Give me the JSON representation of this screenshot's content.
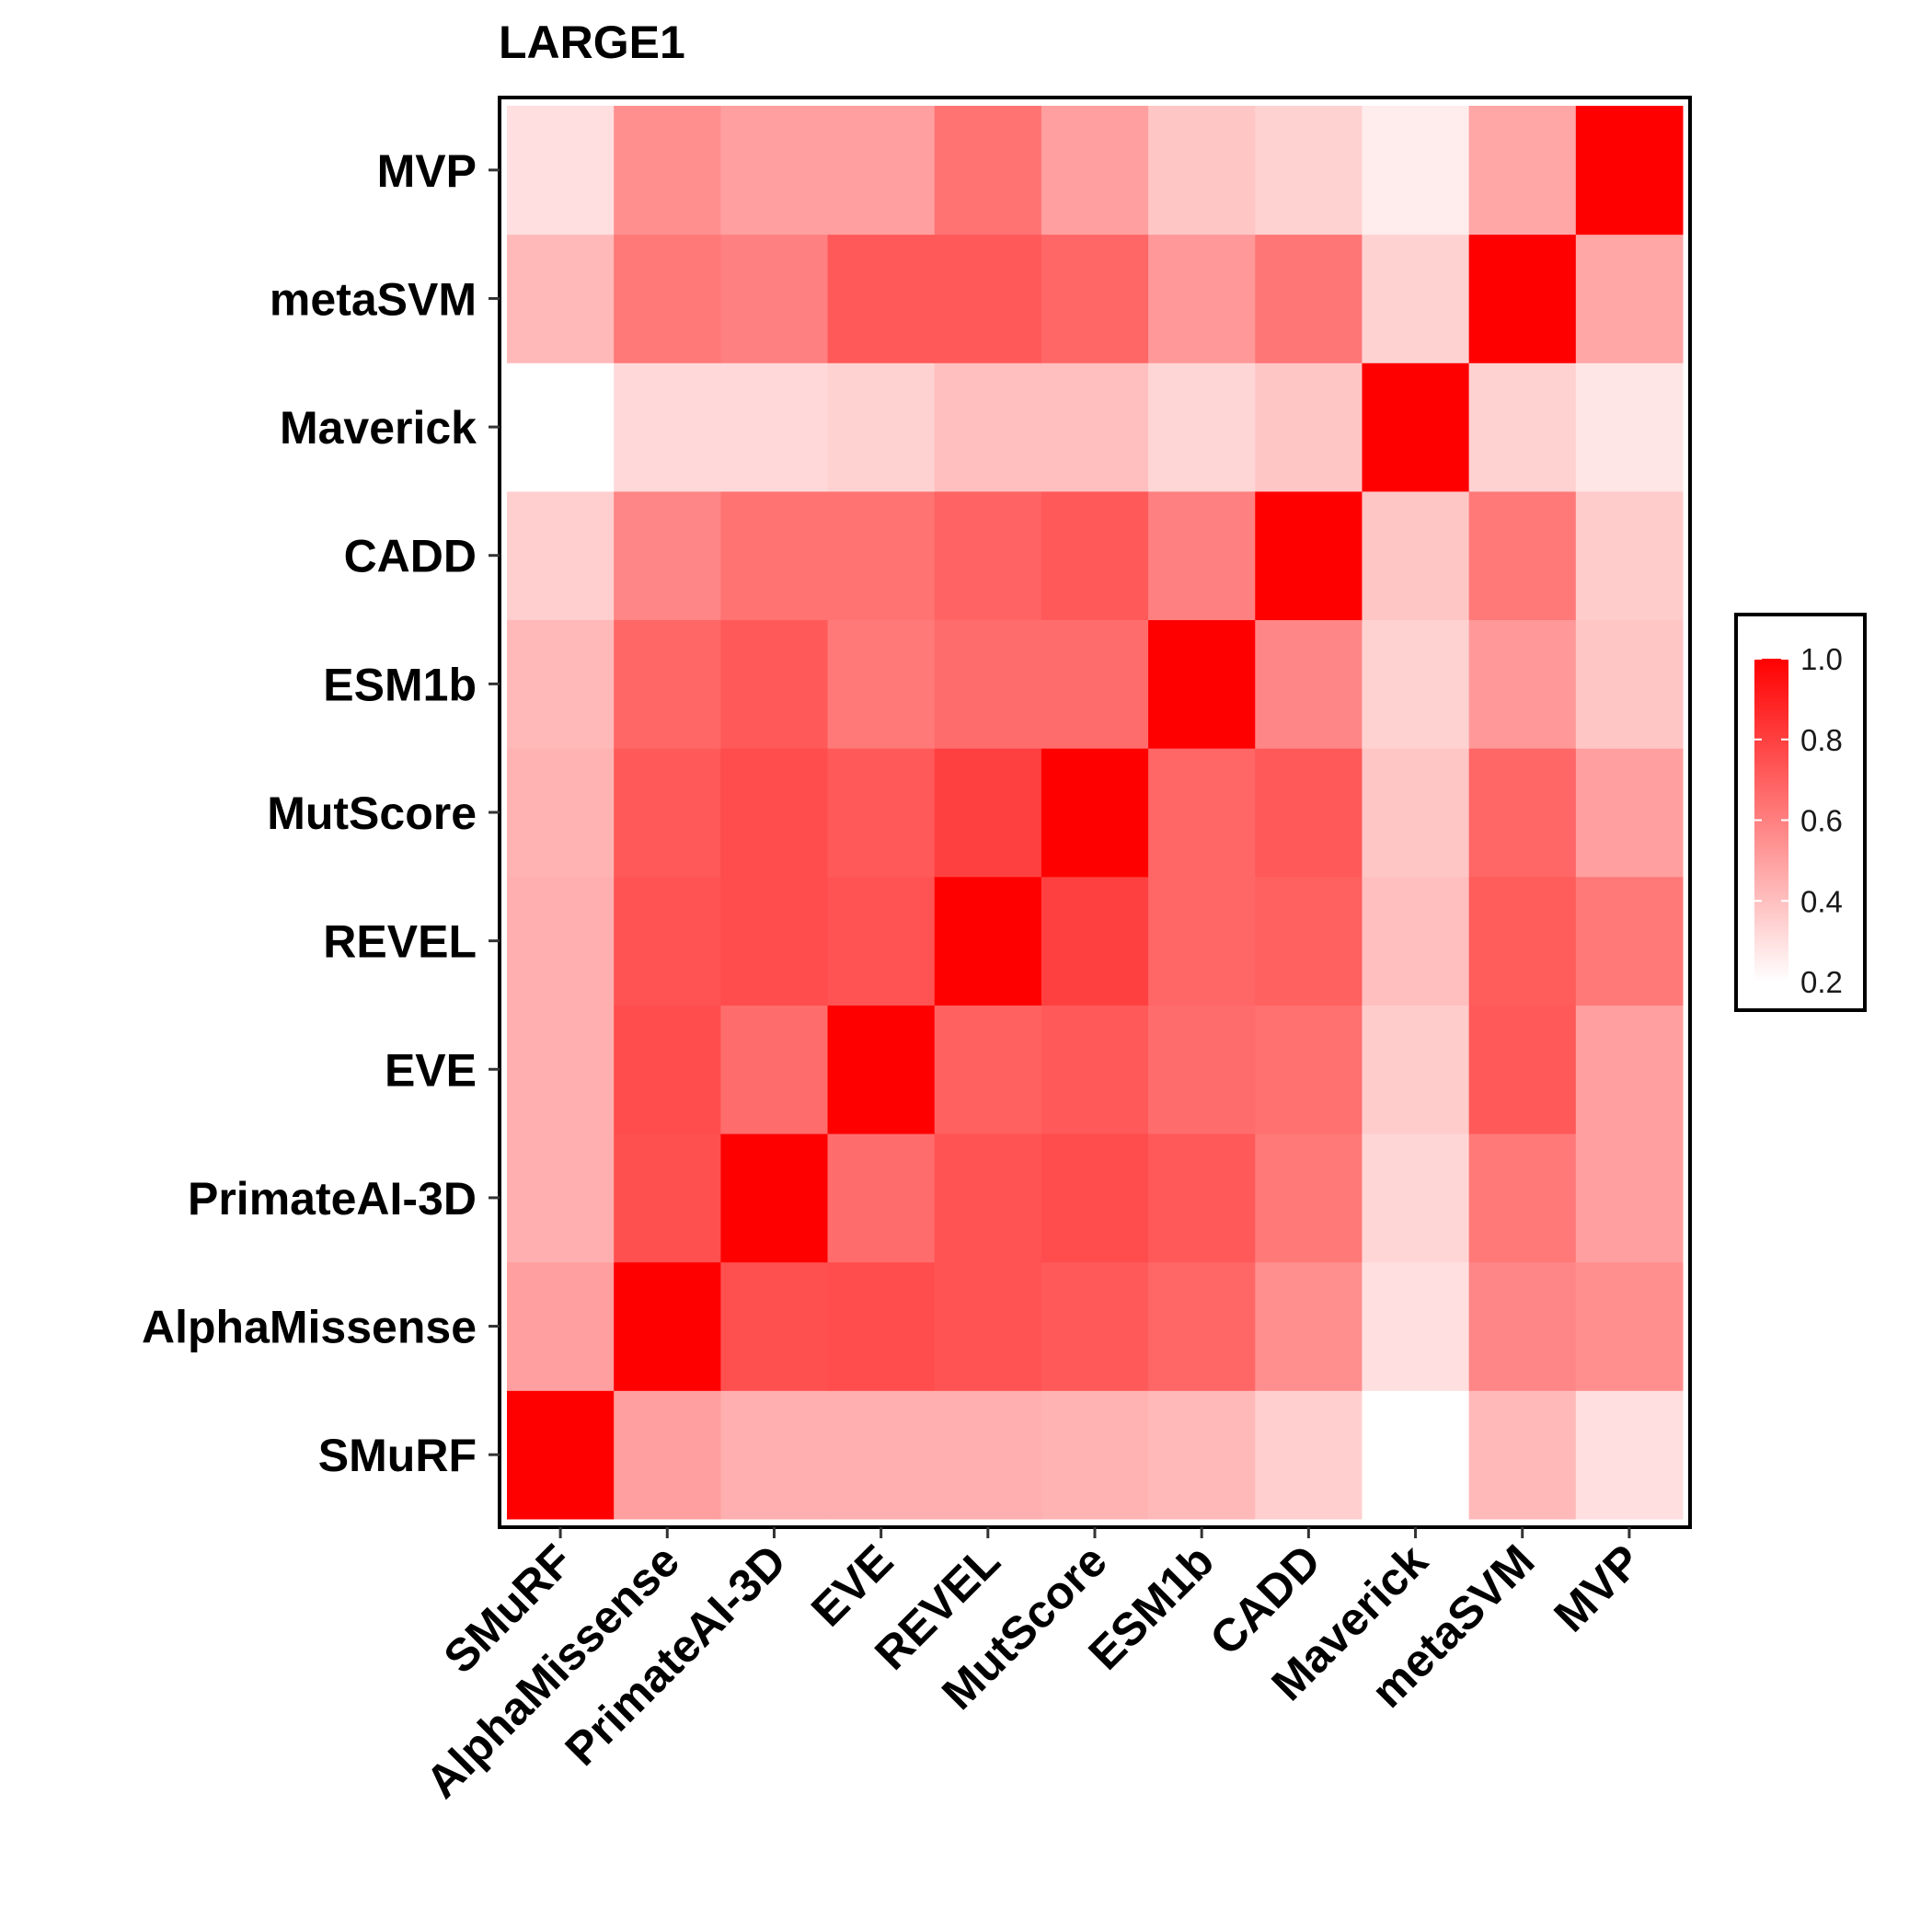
{
  "chart_data": {
    "type": "heatmap",
    "title": "LARGE1",
    "xlabel": "",
    "ylabel": "",
    "x_categories": [
      "SMuRF",
      "AlphaMissense",
      "PrimateAI-3D",
      "EVE",
      "REVEL",
      "MutScore",
      "ESM1b",
      "CADD",
      "Maverick",
      "metaSVM",
      "MVP"
    ],
    "y_categories": [
      "SMuRF",
      "AlphaMissense",
      "PrimateAI-3D",
      "EVE",
      "REVEL",
      "MutScore",
      "ESM1b",
      "CADD",
      "Maverick",
      "metaSVM",
      "MVP"
    ],
    "values": [
      [
        1.0,
        0.5,
        0.45,
        0.45,
        0.45,
        0.44,
        0.42,
        0.35,
        0.2,
        0.42,
        0.3
      ],
      [
        0.5,
        1.0,
        0.75,
        0.76,
        0.74,
        0.72,
        0.68,
        0.55,
        0.3,
        0.58,
        0.55
      ],
      [
        0.45,
        0.75,
        1.0,
        0.66,
        0.74,
        0.76,
        0.72,
        0.62,
        0.33,
        0.62,
        0.5
      ],
      [
        0.45,
        0.76,
        0.66,
        1.0,
        0.7,
        0.72,
        0.66,
        0.65,
        0.36,
        0.72,
        0.5
      ],
      [
        0.45,
        0.74,
        0.76,
        0.74,
        1.0,
        0.8,
        0.68,
        0.7,
        0.4,
        0.71,
        0.62
      ],
      [
        0.44,
        0.72,
        0.76,
        0.72,
        0.8,
        1.0,
        0.68,
        0.72,
        0.38,
        0.68,
        0.5
      ],
      [
        0.42,
        0.68,
        0.72,
        0.62,
        0.66,
        0.66,
        1.0,
        0.58,
        0.34,
        0.52,
        0.38
      ],
      [
        0.35,
        0.58,
        0.64,
        0.64,
        0.69,
        0.72,
        0.6,
        1.0,
        0.38,
        0.62,
        0.36
      ],
      [
        0.2,
        0.32,
        0.32,
        0.34,
        0.4,
        0.4,
        0.33,
        0.38,
        1.0,
        0.34,
        0.28
      ],
      [
        0.42,
        0.62,
        0.6,
        0.72,
        0.72,
        0.68,
        0.52,
        0.63,
        0.34,
        1.0,
        0.48
      ],
      [
        0.3,
        0.55,
        0.5,
        0.5,
        0.64,
        0.5,
        0.38,
        0.34,
        0.26,
        0.48,
        1.0
      ]
    ],
    "color_scale": {
      "low": "#ffffff",
      "high": "#ff0000",
      "limits": [
        0.2,
        1.0
      ]
    },
    "legend": {
      "position": "right",
      "ticks": [
        "1.0",
        "0.8",
        "0.6",
        "0.4",
        "0.2"
      ],
      "tick_values": [
        1.0,
        0.8,
        0.6,
        0.4,
        0.2
      ]
    },
    "grid": false
  }
}
